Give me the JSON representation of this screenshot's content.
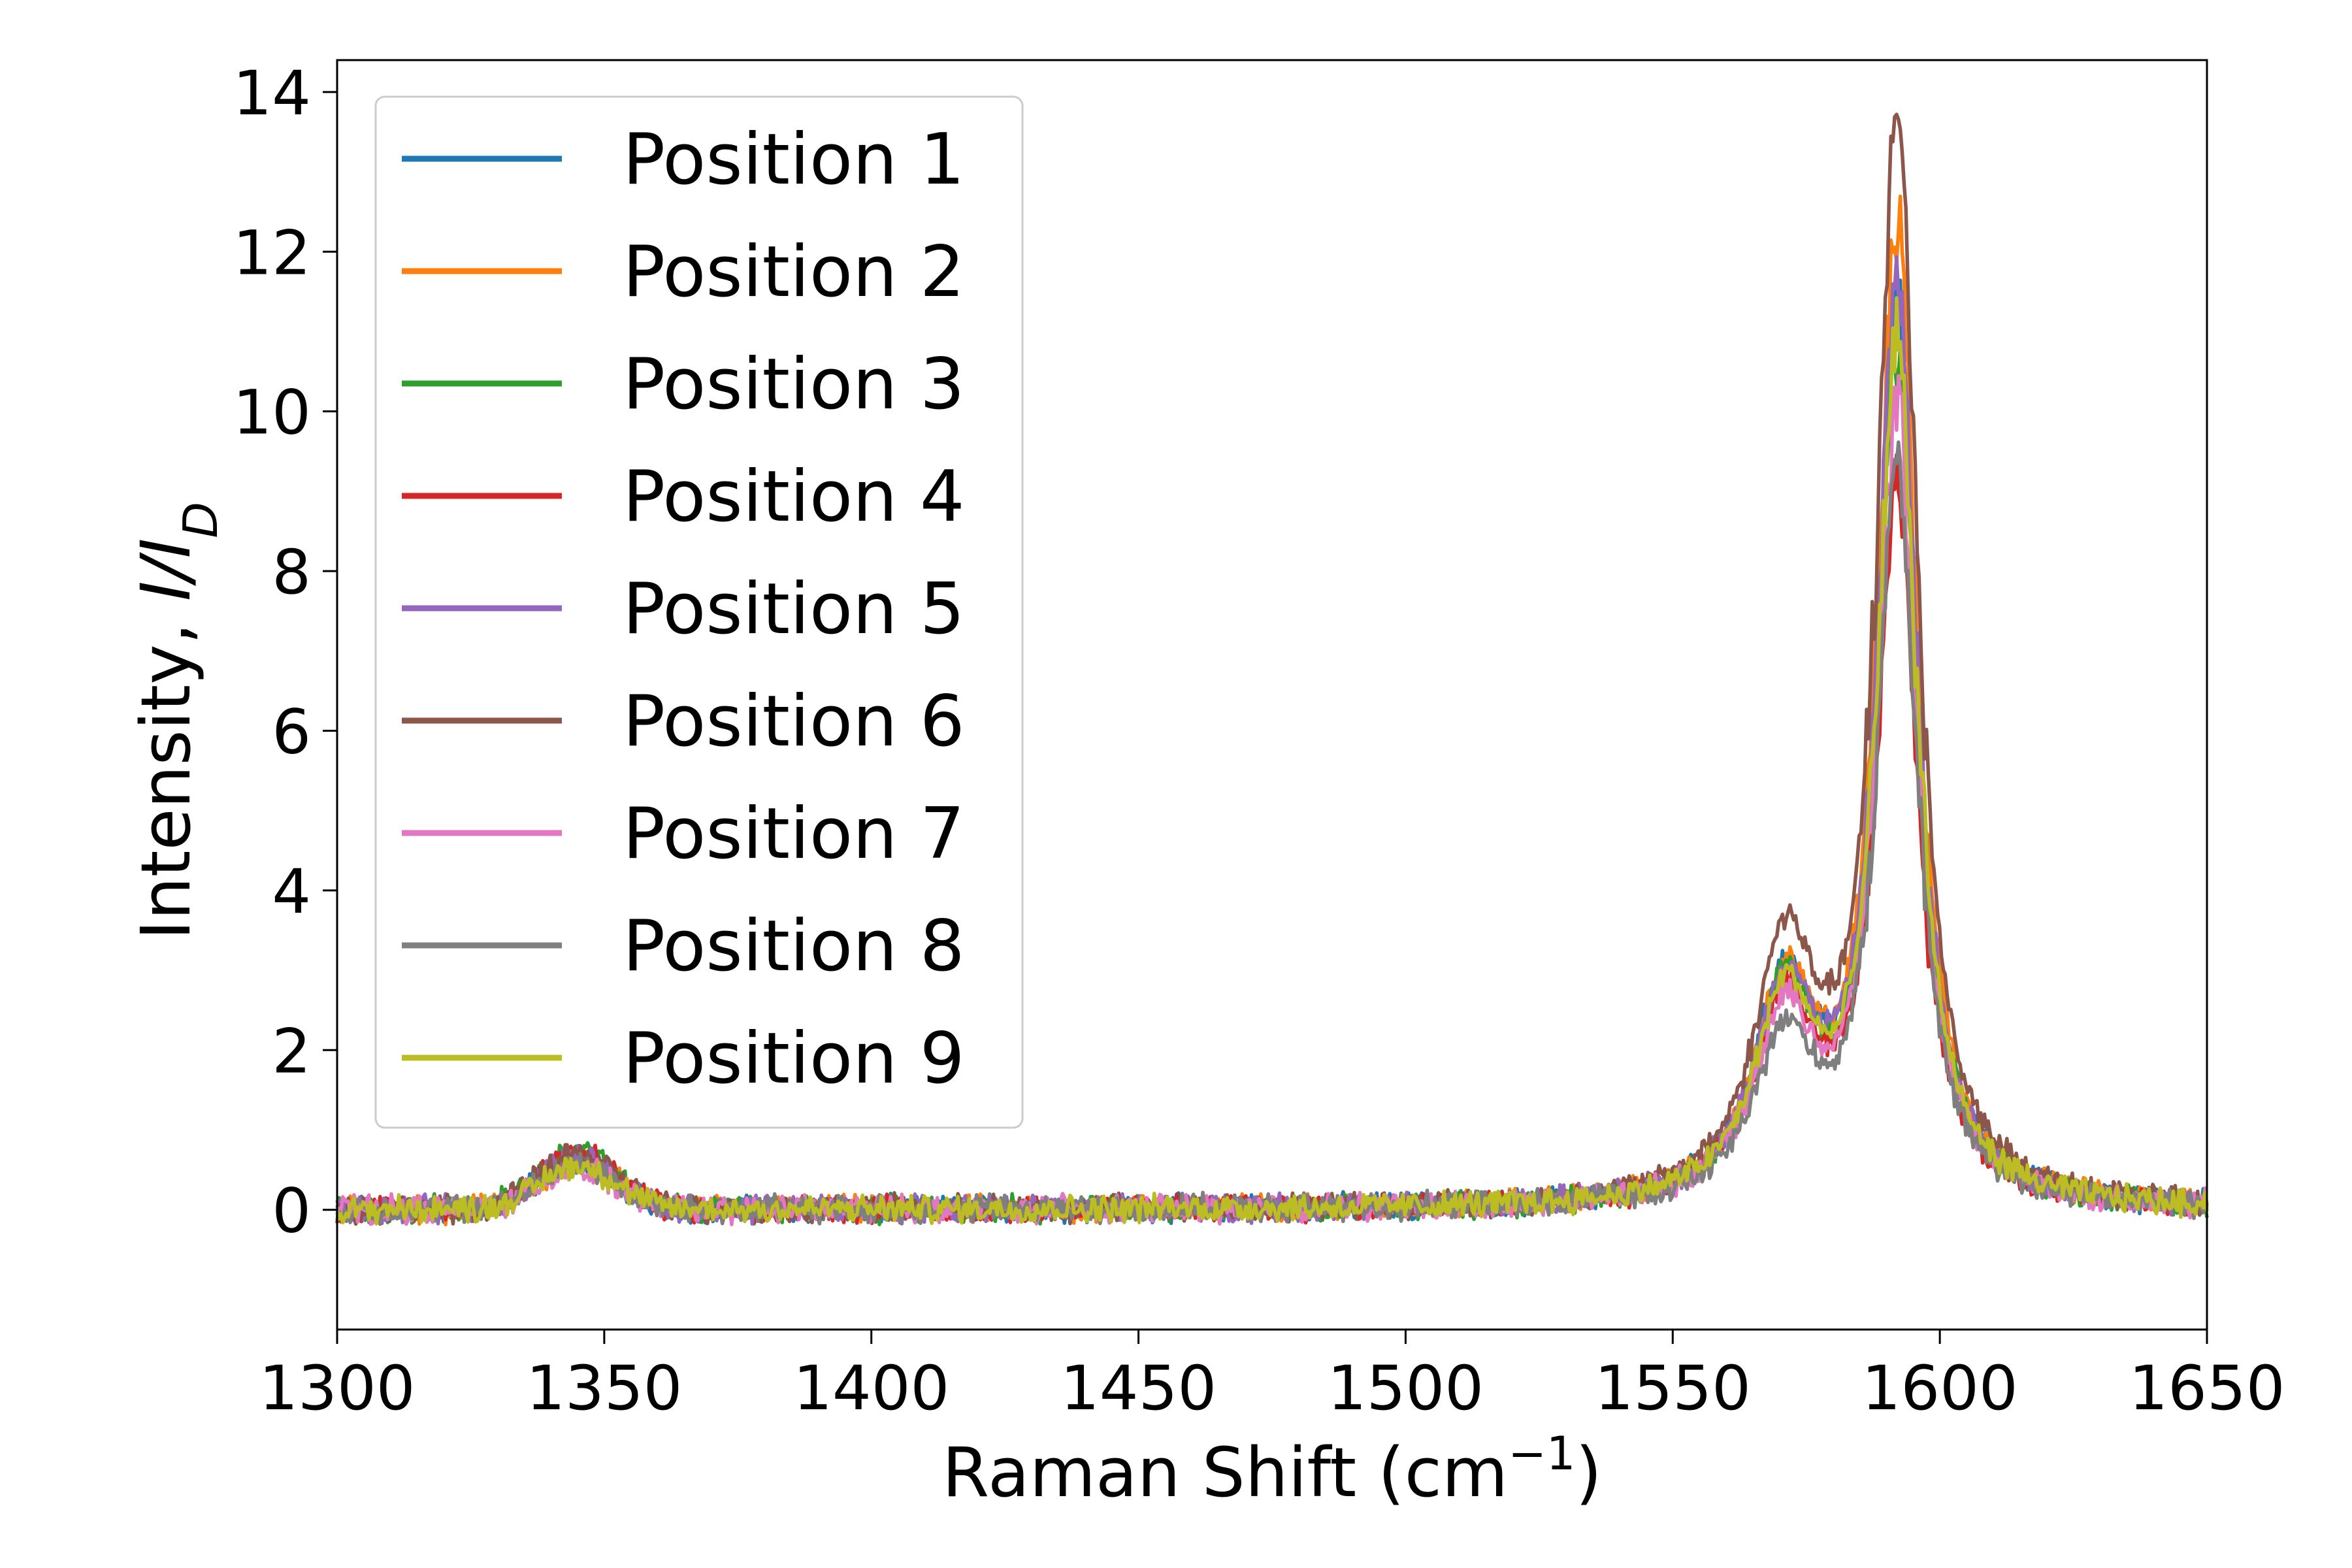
{
  "chart_data": {
    "type": "line",
    "xlabel": {
      "text": "Raman Shift (cm",
      "sup": "−1",
      "suffix": ")"
    },
    "ylabel": {
      "text": "Intensity, ",
      "italic": "I/I",
      "sub": "D"
    },
    "xlim": [
      1300,
      1650
    ],
    "ylim": [
      -1.5,
      14.4
    ],
    "xticks": [
      1300,
      1350,
      1400,
      1450,
      1500,
      1550,
      1600,
      1650
    ],
    "yticks": [
      0,
      2,
      4,
      6,
      8,
      10,
      12,
      14
    ],
    "grid": false,
    "legend": "upper-left",
    "series": [
      {
        "name": "Position 1",
        "color": "#1f77b4",
        "peak_g": 11.0,
        "peak_shoulder": 2.7,
        "peak_d": 0.6
      },
      {
        "name": "Position 2",
        "color": "#ff7f0e",
        "peak_g": 12.1,
        "peak_shoulder": 2.6,
        "peak_d": 0.6
      },
      {
        "name": "Position 3",
        "color": "#2ca02c",
        "peak_g": 10.5,
        "peak_shoulder": 2.6,
        "peak_d": 0.75
      },
      {
        "name": "Position 4",
        "color": "#d62728",
        "peak_g": 9.0,
        "peak_shoulder": 2.5,
        "peak_d": 0.7
      },
      {
        "name": "Position 5",
        "color": "#9467bd",
        "peak_g": 11.4,
        "peak_shoulder": 2.6,
        "peak_d": 0.65
      },
      {
        "name": "Position 6",
        "color": "#8c564b",
        "peak_g": 13.6,
        "peak_shoulder": 3.1,
        "peak_d": 0.7
      },
      {
        "name": "Position 7",
        "color": "#e377c2",
        "peak_g": 9.9,
        "peak_shoulder": 2.3,
        "peak_d": 0.5
      },
      {
        "name": "Position 8",
        "color": "#7f7f7f",
        "peak_g": 9.2,
        "peak_shoulder": 2.0,
        "peak_d": 0.55
      },
      {
        "name": "Position 9",
        "color": "#bcbd22",
        "peak_g": 10.7,
        "peak_shoulder": 2.5,
        "peak_d": 0.55
      }
    ],
    "peaks": {
      "d_center": 1345,
      "d_width": 10,
      "shoulder_center": 1571,
      "shoulder_width": 7,
      "g_center": 1592,
      "g_width": 4.5
    },
    "noise_amplitude": 0.14
  }
}
